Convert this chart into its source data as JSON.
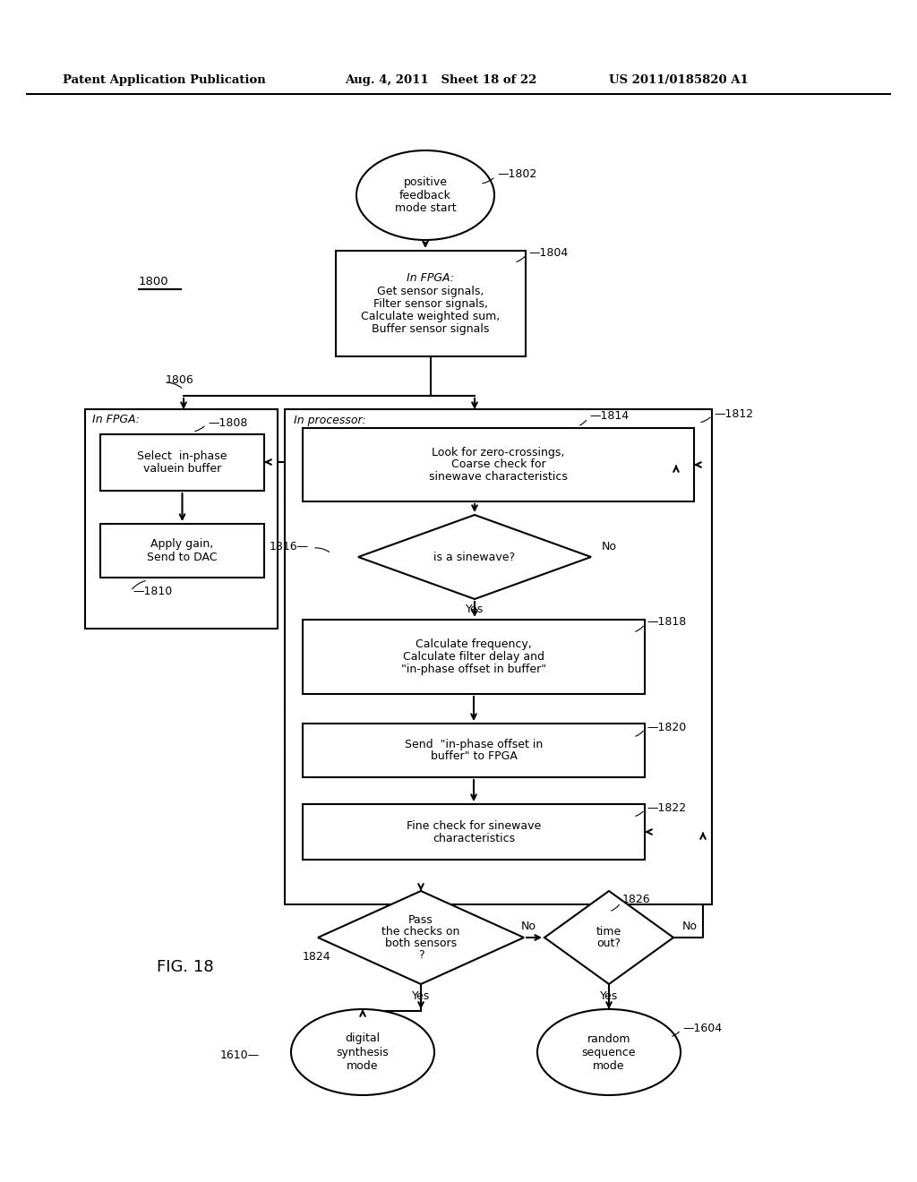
{
  "header_left": "Patent Application Publication",
  "header_mid": "Aug. 4, 2011   Sheet 18 of 22",
  "header_right": "US 2011/0185820 A1",
  "bg_color": "#ffffff",
  "lw": 1.5,
  "fontsize_body": 9,
  "fontsize_label": 9
}
